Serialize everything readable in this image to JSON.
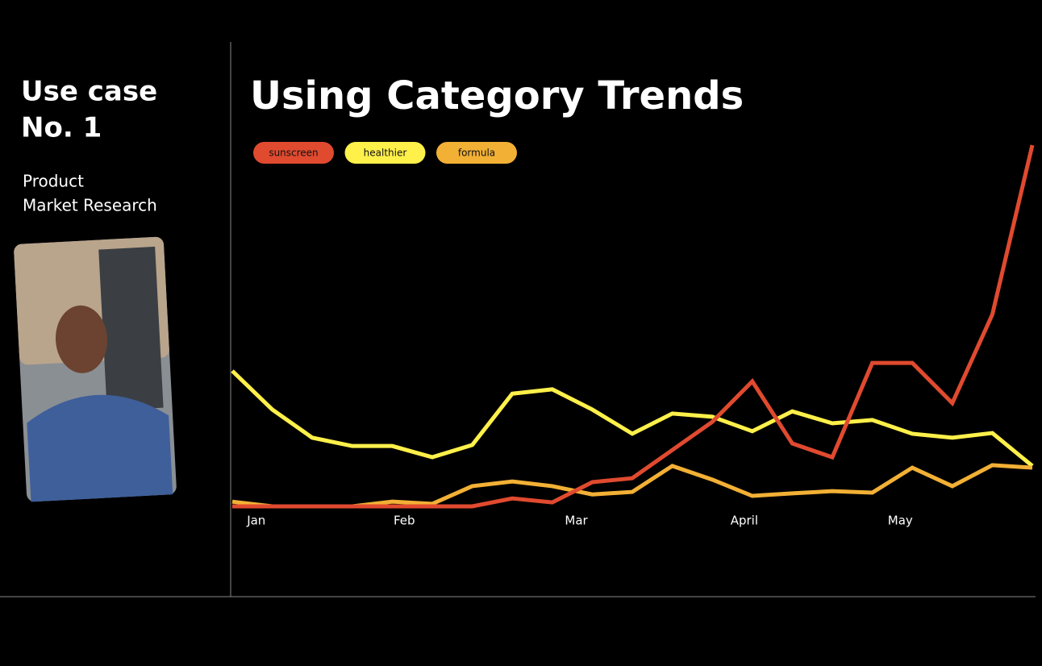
{
  "sidebar": {
    "heading": [
      "Use case",
      "No. 1"
    ],
    "subheading": [
      "Product",
      "Market Research"
    ]
  },
  "chart_data": {
    "type": "line",
    "title": "Using Category Trends",
    "x": [
      0,
      1,
      2,
      3,
      4,
      5,
      6,
      7,
      8,
      9,
      10,
      11,
      12,
      13,
      14,
      15,
      16,
      17,
      18,
      19,
      20
    ],
    "xlim": [
      0,
      20
    ],
    "xticks": [
      {
        "value": 0.6,
        "label": "Jan"
      },
      {
        "value": 4.3,
        "label": "Feb"
      },
      {
        "value": 8.6,
        "label": "Mar"
      },
      {
        "value": 12.8,
        "label": "April"
      },
      {
        "value": 16.7,
        "label": "May"
      }
    ],
    "ylim": [
      0,
      100
    ],
    "series": [
      {
        "name": "sunscreen",
        "color": "#e04a2f",
        "values": [
          0,
          0,
          0,
          0,
          0,
          0,
          0,
          2.2,
          1.1,
          6.7,
          7.8,
          15.6,
          23.4,
          34.6,
          17.4,
          13.6,
          39.7,
          39.7,
          28.6,
          53.1,
          100
        ]
      },
      {
        "name": "healthier",
        "color": "#fff04a",
        "values": [
          37.5,
          26.8,
          19.0,
          16.7,
          16.7,
          13.6,
          17.0,
          31.2,
          32.4,
          26.8,
          20.1,
          25.7,
          24.8,
          20.8,
          26.3,
          23.0,
          23.9,
          20.1,
          19.0,
          20.3,
          11.2
        ]
      },
      {
        "name": "formula",
        "color": "#f2b035",
        "values": [
          1.3,
          0,
          0,
          0,
          1.3,
          0.7,
          5.6,
          6.9,
          5.6,
          3.3,
          4.0,
          11.2,
          7.4,
          2.9,
          3.6,
          4.2,
          3.8,
          10.7,
          5.6,
          11.4,
          10.7
        ]
      }
    ]
  }
}
